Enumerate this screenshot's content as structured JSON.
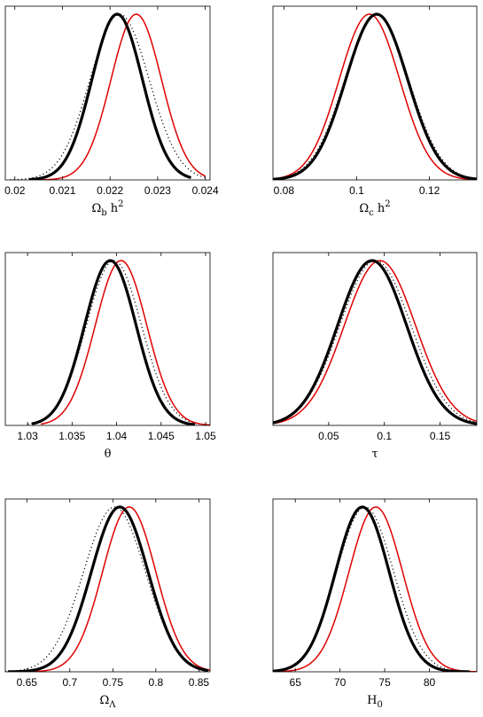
{
  "chart_data": [
    {
      "type": "line",
      "xlabel": "Ω_b h^2",
      "xlabel_parts": [
        {
          "t": "Ω",
          "s": ""
        },
        {
          "t": "b",
          "s": "sub"
        },
        {
          "t": " h",
          "s": ""
        },
        {
          "t": "2",
          "s": "sup"
        }
      ],
      "xlim": [
        0.0198,
        0.0241
      ],
      "ticks": [
        0.02,
        0.021,
        0.022,
        0.023,
        0.024
      ],
      "tick_labels": [
        "0.02",
        "0.021",
        "0.022",
        "0.023",
        "0.024"
      ],
      "series": [
        {
          "style": "black-thick",
          "mean": 0.02215,
          "sd": 0.00053,
          "range": [
            0.0203,
            0.0237
          ]
        },
        {
          "style": "black-dotted",
          "mean": 0.0222,
          "sd": 0.00062,
          "range": [
            0.0199,
            0.024
          ]
        },
        {
          "style": "red",
          "mean": 0.02255,
          "sd": 0.00053,
          "range": [
            0.0203,
            0.024
          ]
        }
      ]
    },
    {
      "type": "line",
      "xlabel": "Ω_c h^2",
      "xlabel_parts": [
        {
          "t": "Ω",
          "s": ""
        },
        {
          "t": "c",
          "s": "sub"
        },
        {
          "t": " h",
          "s": ""
        },
        {
          "t": "2",
          "s": "sup"
        }
      ],
      "xlim": [
        0.077,
        0.133
      ],
      "ticks": [
        0.08,
        0.1,
        0.12
      ],
      "tick_labels": [
        "0.08",
        "0.1",
        "0.12"
      ],
      "series": [
        {
          "style": "black-thick",
          "mean": 0.1055,
          "sd": 0.0085,
          "range": [
            0.077,
            0.133
          ]
        },
        {
          "style": "black-dotted",
          "mean": 0.1055,
          "sd": 0.0088,
          "range": [
            0.077,
            0.133
          ]
        },
        {
          "style": "red",
          "mean": 0.1035,
          "sd": 0.0083,
          "range": [
            0.077,
            0.133
          ]
        }
      ]
    },
    {
      "type": "line",
      "xlabel": "θ",
      "xlabel_parts": [
        {
          "t": "θ",
          "s": ""
        }
      ],
      "xlim": [
        1.0275,
        1.0505
      ],
      "ticks": [
        1.03,
        1.035,
        1.04,
        1.045,
        1.05
      ],
      "tick_labels": [
        "1.03",
        "1.035",
        "1.04",
        "1.045",
        "1.05"
      ],
      "series": [
        {
          "style": "black-thick",
          "mean": 1.0393,
          "sd": 0.0029,
          "range": [
            1.0305,
            1.0488
          ]
        },
        {
          "style": "black-dotted",
          "mean": 1.0397,
          "sd": 0.0031,
          "range": [
            1.03,
            1.05
          ]
        },
        {
          "style": "red",
          "mean": 1.0405,
          "sd": 0.0029,
          "range": [
            1.0315,
            1.0505
          ]
        }
      ]
    },
    {
      "type": "line",
      "xlabel": "τ",
      "xlabel_parts": [
        {
          "t": "τ",
          "s": ""
        }
      ],
      "xlim": [
        0.0,
        0.183
      ],
      "ticks": [
        0.05,
        0.1,
        0.15
      ],
      "tick_labels": [
        "0.05",
        "0.1",
        "0.15"
      ],
      "series": [
        {
          "style": "black-thick",
          "mean": 0.089,
          "sd": 0.031,
          "range": [
            0.0,
            0.183
          ]
        },
        {
          "style": "black-dotted",
          "mean": 0.092,
          "sd": 0.032,
          "range": [
            0.0,
            0.183
          ]
        },
        {
          "style": "red",
          "mean": 0.096,
          "sd": 0.032,
          "range": [
            0.0,
            0.183
          ]
        }
      ]
    },
    {
      "type": "line",
      "xlabel": "Ω_Λ",
      "xlabel_parts": [
        {
          "t": "Ω",
          "s": ""
        },
        {
          "t": "Λ",
          "s": "sub"
        }
      ],
      "xlim": [
        0.625,
        0.863
      ],
      "ticks": [
        0.65,
        0.7,
        0.75,
        0.8,
        0.85
      ],
      "tick_labels": [
        "0.65",
        "0.7",
        "0.75",
        "0.8",
        "0.85"
      ],
      "series": [
        {
          "style": "black-thick",
          "mean": 0.758,
          "sd": 0.033,
          "range": [
            0.628,
            0.861
          ]
        },
        {
          "style": "black-dotted",
          "mean": 0.752,
          "sd": 0.036,
          "range": [
            0.625,
            0.862
          ]
        },
        {
          "style": "red",
          "mean": 0.769,
          "sd": 0.031,
          "range": [
            0.64,
            0.863
          ]
        }
      ]
    },
    {
      "type": "line",
      "xlabel": "H_0",
      "xlabel_parts": [
        {
          "t": "H",
          "s": ""
        },
        {
          "t": "0",
          "s": "sub"
        }
      ],
      "xlim": [
        62.5,
        85.3
      ],
      "ticks": [
        65,
        70,
        75,
        80
      ],
      "tick_labels": [
        "65",
        "70",
        "75",
        "80"
      ],
      "series": [
        {
          "style": "black-thick",
          "mean": 72.5,
          "sd": 3.0,
          "range": [
            62.5,
            84.5
          ]
        },
        {
          "style": "black-dotted",
          "mean": 72.8,
          "sd": 3.2,
          "range": [
            62.5,
            85.3
          ]
        },
        {
          "style": "red",
          "mean": 74.0,
          "sd": 3.0,
          "range": [
            63.5,
            85.3
          ]
        }
      ]
    }
  ],
  "colors": {
    "thick": "#000000",
    "dotted": "#000000",
    "red": "#e00000",
    "axes": "#000000"
  }
}
